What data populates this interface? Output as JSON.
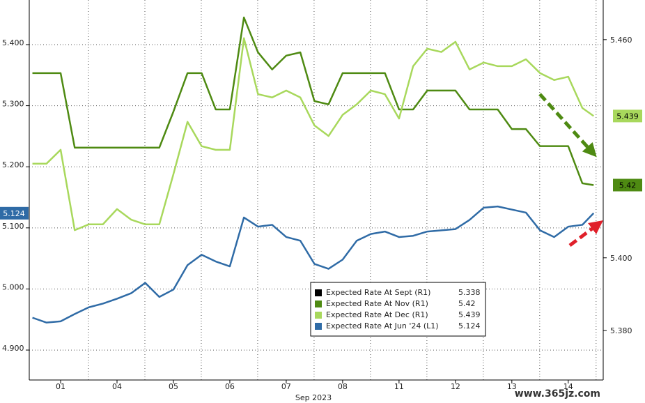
{
  "chart_data": {
    "type": "line",
    "x_label": "Sep 2023",
    "watermark": "www.365jz.com",
    "x": [
      -0.5,
      -0.25,
      0,
      0.25,
      0.5,
      0.75,
      1,
      1.25,
      1.5,
      1.75,
      2,
      2.25,
      2.5,
      2.75,
      3,
      3.25,
      3.5,
      3.75,
      4,
      4.25,
      4.5,
      4.75,
      5,
      5.25,
      5.5,
      5.75,
      6,
      6.25,
      6.5,
      6.75,
      7,
      7.25,
      7.5,
      7.75,
      8,
      8.25,
      8.5,
      8.75,
      9,
      9.25,
      9.45
    ],
    "xlim": [
      -0.556,
      9.62
    ],
    "xticks": [
      {
        "value": 0,
        "label": "01"
      },
      {
        "value": 1,
        "label": "04"
      },
      {
        "value": 2,
        "label": "05"
      },
      {
        "value": 3,
        "label": "06"
      },
      {
        "value": 4,
        "label": "07"
      },
      {
        "value": 5,
        "label": "08"
      },
      {
        "value": 6,
        "label": "11"
      },
      {
        "value": 7,
        "label": "12"
      },
      {
        "value": 8,
        "label": "13"
      },
      {
        "value": 9,
        "label": "14"
      }
    ],
    "ylim": [
      4.851,
      5.473
    ],
    "yticks": [
      {
        "value": 4.9,
        "label": "4.900"
      },
      {
        "value": 5.0,
        "label": "5.000"
      },
      {
        "value": 5.1,
        "label": "5.100"
      },
      {
        "value": 5.2,
        "label": "5.200"
      },
      {
        "value": 5.3,
        "label": "5.300"
      },
      {
        "value": 5.4,
        "label": "5.400"
      }
    ],
    "y2lim": [
      5.3664,
      5.4709
    ],
    "y2ticks": [
      {
        "value": 5.38,
        "label": "5.380"
      },
      {
        "value": 5.4,
        "label": "5.400"
      },
      {
        "value": 5.46,
        "label": "5.460"
      }
    ],
    "grid": true,
    "series": [
      {
        "name": "Expected Rate At Sept (R1)",
        "color": "#000000",
        "axis": "y2",
        "last_value": 5.338,
        "values": [
          null,
          null,
          null,
          null,
          null,
          null,
          null,
          null,
          null,
          null,
          null,
          null,
          null,
          null,
          null,
          null,
          null,
          null,
          null,
          null,
          null,
          null,
          null,
          null,
          null,
          null,
          null,
          null,
          null,
          null,
          null,
          null,
          null,
          null,
          null,
          null,
          null,
          null,
          null,
          null,
          null
        ]
      },
      {
        "name": "Expected Rate At Nov (R1)",
        "color": "#4e8a12",
        "axis": "y2",
        "last_value": 5.42,
        "values": [
          5.4508,
          5.4508,
          5.4508,
          5.4303,
          5.4303,
          5.4303,
          5.4303,
          5.4303,
          5.4303,
          5.4303,
          5.4402,
          5.4508,
          5.4508,
          5.4408,
          5.4408,
          5.4661,
          5.4565,
          5.4518,
          5.4556,
          5.4565,
          5.4431,
          5.4422,
          5.4508,
          5.4508,
          5.4508,
          5.4508,
          5.4408,
          5.4408,
          5.446,
          5.446,
          5.446,
          5.4408,
          5.4408,
          5.4408,
          5.4354,
          5.4354,
          5.4307,
          5.4307,
          5.4307,
          5.4205,
          5.42
        ]
      },
      {
        "name": "Expected Rate At Dec (R1)",
        "color": "#a8d85c",
        "axis": "y2",
        "last_value": 5.439,
        "values": [
          5.4259,
          5.4259,
          5.4297,
          5.4076,
          5.4092,
          5.4092,
          5.4134,
          5.4105,
          5.4092,
          5.4092,
          5.423,
          5.4374,
          5.4307,
          5.4297,
          5.4297,
          5.4604,
          5.445,
          5.4441,
          5.446,
          5.4441,
          5.4364,
          5.4335,
          5.4393,
          5.4422,
          5.446,
          5.445,
          5.4383,
          5.4527,
          5.4575,
          5.4566,
          5.4594,
          5.4518,
          5.4537,
          5.4527,
          5.4527,
          5.4546,
          5.4508,
          5.4489,
          5.4498,
          5.4412,
          5.439
        ]
      },
      {
        "name": "Expected Rate At Jun '24 (L1)",
        "color": "#2f6ba6",
        "axis": "y",
        "last_value": 5.124,
        "values": [
          4.953,
          4.945,
          4.947,
          4.959,
          4.97,
          4.976,
          4.984,
          4.993,
          5.01,
          4.987,
          4.999,
          5.039,
          5.056,
          5.045,
          5.037,
          5.117,
          5.102,
          5.105,
          5.085,
          5.079,
          5.041,
          5.033,
          5.048,
          5.079,
          5.09,
          5.094,
          5.085,
          5.087,
          5.094,
          5.096,
          5.098,
          5.113,
          5.133,
          5.135,
          5.13,
          5.125,
          5.096,
          5.085,
          5.102,
          5.105,
          5.124
        ]
      }
    ]
  }
}
